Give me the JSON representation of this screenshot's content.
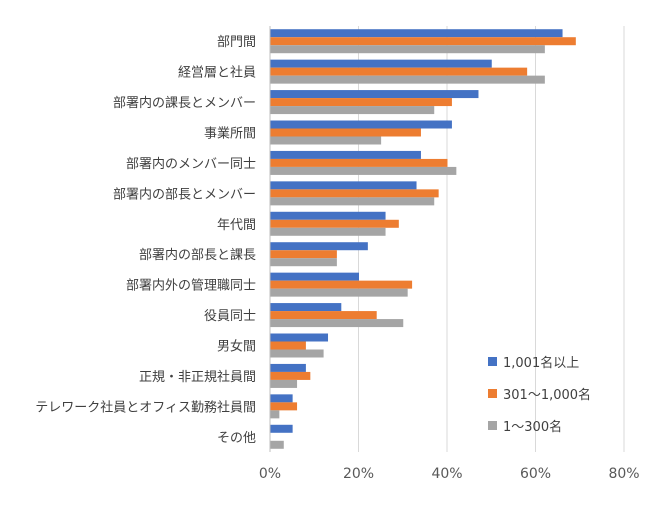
{
  "chart_data": {
    "type": "bar",
    "orientation": "horizontal",
    "categories": [
      "部門間",
      "経営層と社員",
      "部署内の課長とメンバー",
      "事業所間",
      "部署内のメンバー同士",
      "部署内の部長とメンバー",
      "年代間",
      "部署内の部長と課長",
      "部署内外の管理職同士",
      "役員同士",
      "男女間",
      "正規・非正規社員間",
      "テレワーク社員とオフィス勤務社員間",
      "その他"
    ],
    "series": [
      {
        "name": "1,001名以上",
        "color": "#4472c4",
        "values": [
          66,
          50,
          47,
          41,
          34,
          33,
          26,
          22,
          20,
          16,
          13,
          8,
          5,
          5
        ]
      },
      {
        "name": "301～1,000名",
        "color": "#ed7d31",
        "values": [
          69,
          58,
          41,
          34,
          40,
          38,
          29,
          15,
          32,
          24,
          8,
          9,
          6,
          0
        ]
      },
      {
        "name": "1～300名",
        "color": "#a5a5a5",
        "values": [
          62,
          62,
          37,
          25,
          42,
          37,
          26,
          15,
          31,
          30,
          12,
          6,
          2,
          3
        ]
      }
    ],
    "xlim": [
      0,
      80
    ],
    "xticks": [
      "0%",
      "20%",
      "40%",
      "60%",
      "80%"
    ],
    "gridlines": true,
    "legend_position": "bottom-right"
  }
}
